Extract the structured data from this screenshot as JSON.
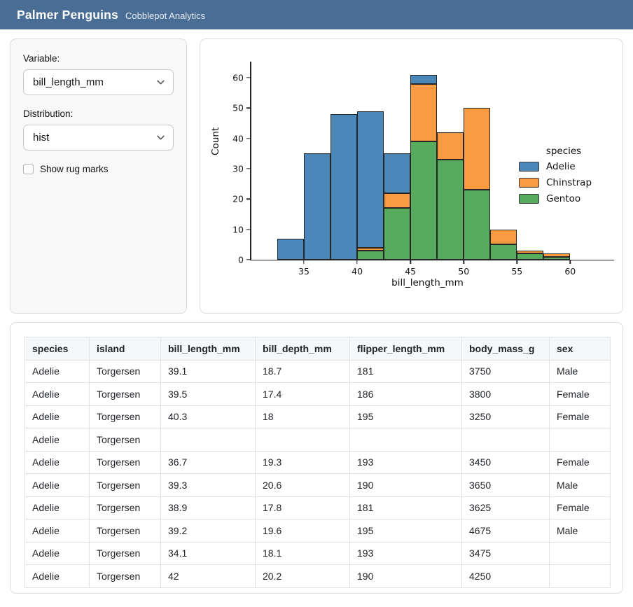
{
  "header": {
    "title": "Palmer Penguins",
    "subtitle": "Cobblepot Analytics"
  },
  "sidebar": {
    "variable_label": "Variable:",
    "variable_value": "bill_length_mm",
    "distribution_label": "Distribution:",
    "distribution_value": "hist",
    "rug_label": "Show rug marks",
    "rug_checked": false,
    "chevron_icon": "chevron-down"
  },
  "chart_data": {
    "type": "bar",
    "variant": "histogram",
    "stacked": true,
    "title": "",
    "xlabel": "bill_length_mm",
    "ylabel": "Count",
    "xlim": [
      30.0,
      63.2
    ],
    "ylim": [
      0,
      63
    ],
    "x_ticks": [
      35,
      40,
      45,
      50,
      55,
      60
    ],
    "y_ticks": [
      0,
      10,
      20,
      30,
      40,
      50,
      60
    ],
    "bin_edges": [
      32.5,
      35,
      37.5,
      40,
      42.5,
      45,
      47.5,
      50,
      52.5,
      55,
      57.5,
      60
    ],
    "series": [
      {
        "name": "Gentoo",
        "color": "#57ab5f",
        "values": [
          0,
          0,
          0,
          3,
          17,
          39,
          33,
          23,
          5,
          2,
          1
        ]
      },
      {
        "name": "Chinstrap",
        "color": "#fa9a43",
        "values": [
          0,
          0,
          0,
          1,
          5,
          19,
          9,
          27,
          5,
          1,
          1
        ]
      },
      {
        "name": "Adelie",
        "color": "#4c87b9",
        "values": [
          7,
          35,
          48,
          45,
          13,
          3,
          0,
          0,
          0,
          0,
          0
        ]
      }
    ],
    "bar_totals": [
      7,
      35,
      48,
      49,
      35,
      61,
      42,
      50,
      10,
      3,
      2
    ],
    "legend": {
      "title": "species",
      "position": "right",
      "entries": [
        {
          "label": "Adelie",
          "color": "#4c87b9"
        },
        {
          "label": "Chinstrap",
          "color": "#fa9a43"
        },
        {
          "label": "Gentoo",
          "color": "#57ab5f"
        }
      ]
    },
    "edge_color": "#262626",
    "grid": false
  },
  "table": {
    "columns": [
      "species",
      "island",
      "bill_length_mm",
      "bill_depth_mm",
      "flipper_length_mm",
      "body_mass_g",
      "sex"
    ],
    "rows": [
      [
        "Adelie",
        "Torgersen",
        "39.1",
        "18.7",
        "181",
        "3750",
        "Male"
      ],
      [
        "Adelie",
        "Torgersen",
        "39.5",
        "17.4",
        "186",
        "3800",
        "Female"
      ],
      [
        "Adelie",
        "Torgersen",
        "40.3",
        "18",
        "195",
        "3250",
        "Female"
      ],
      [
        "Adelie",
        "Torgersen",
        "",
        "",
        "",
        "",
        ""
      ],
      [
        "Adelie",
        "Torgersen",
        "36.7",
        "19.3",
        "193",
        "3450",
        "Female"
      ],
      [
        "Adelie",
        "Torgersen",
        "39.3",
        "20.6",
        "190",
        "3650",
        "Male"
      ],
      [
        "Adelie",
        "Torgersen",
        "38.9",
        "17.8",
        "181",
        "3625",
        "Female"
      ],
      [
        "Adelie",
        "Torgersen",
        "39.2",
        "19.6",
        "195",
        "4675",
        "Male"
      ],
      [
        "Adelie",
        "Torgersen",
        "34.1",
        "18.1",
        "193",
        "3475",
        ""
      ],
      [
        "Adelie",
        "Torgersen",
        "42",
        "20.2",
        "190",
        "4250",
        ""
      ]
    ]
  },
  "colors": {
    "header_bg": "#4a6d96",
    "card_border": "#dcdcdc",
    "sidebar_bg": "#f8f8f8"
  }
}
